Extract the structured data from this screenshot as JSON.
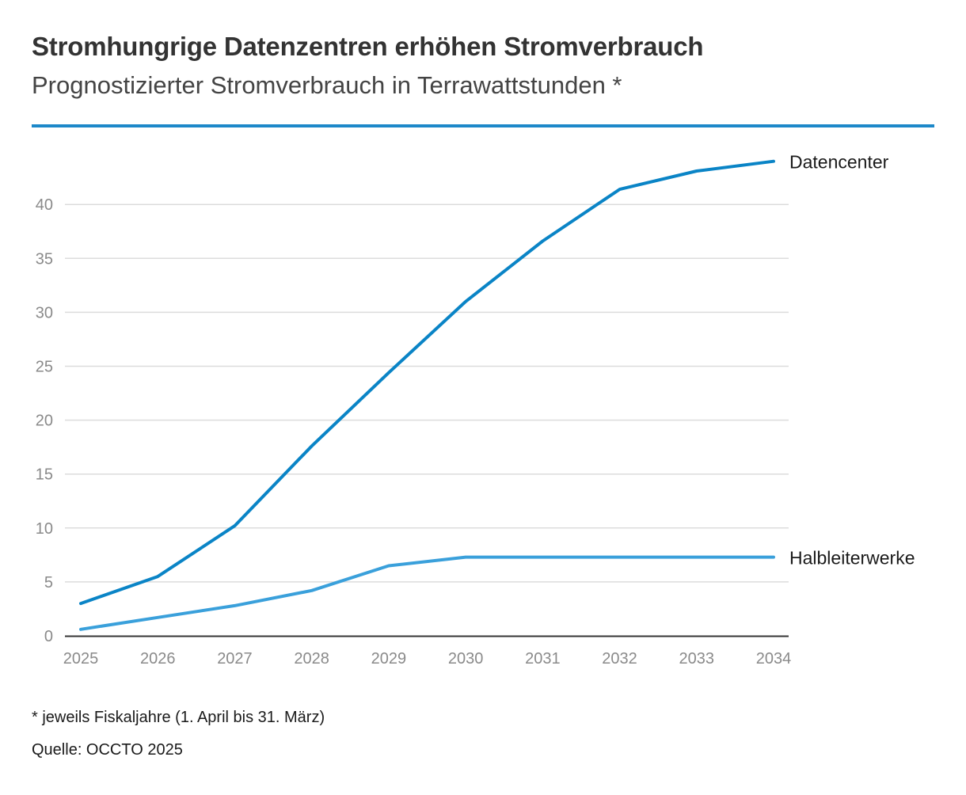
{
  "chart_data": {
    "type": "line",
    "title": "Stromhungrige Datenzentren erhöhen Stromverbrauch",
    "subtitle": "Prognostizierter Stromverbrauch in Terrawattstunden *",
    "xlabel": "",
    "ylabel": "",
    "x": [
      "2025",
      "2026",
      "2027",
      "2028",
      "2029",
      "2030",
      "2031",
      "2032",
      "2033",
      "2034"
    ],
    "ylim": [
      0,
      45
    ],
    "yticks": [
      0,
      5,
      10,
      15,
      20,
      25,
      30,
      35,
      40
    ],
    "grid": true,
    "series": [
      {
        "name": "Datencenter",
        "color": "#0a84c6",
        "values": [
          3.0,
          5.5,
          10.2,
          17.6,
          24.4,
          31.0,
          36.6,
          41.4,
          43.1,
          44.0
        ]
      },
      {
        "name": "Halbleiterwerke",
        "color": "#3aa0db",
        "values": [
          0.6,
          1.7,
          2.8,
          4.2,
          6.5,
          7.3,
          7.3,
          7.3,
          7.3,
          7.3
        ]
      }
    ],
    "legend": "inline-right",
    "footnote": "* jeweils Fiskaljahre (1. April bis 31. März)",
    "source": "Quelle: OCCTO 2025"
  },
  "colors": {
    "accent": "#1d88c9",
    "grid": "#dcdcdc",
    "axis": "#333333"
  }
}
